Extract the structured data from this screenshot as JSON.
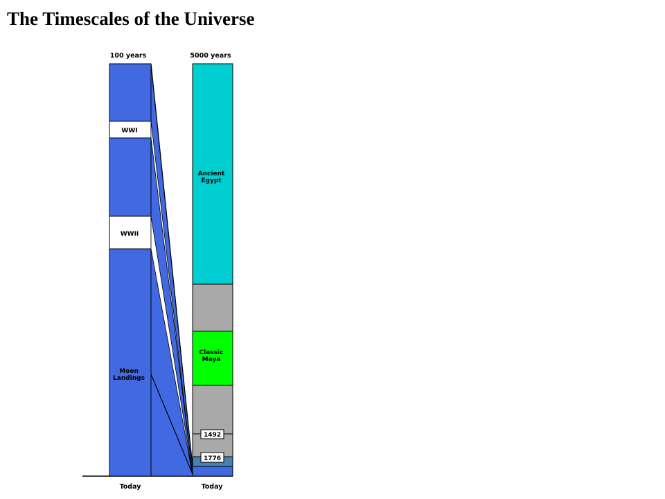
{
  "title": "The Timescales of the Universe",
  "colors": {
    "blue": "#4169e1",
    "cyan": "#00ced1",
    "gray": "#a9a9a9",
    "green": "#00ff00",
    "steel": "#4682b4",
    "white": "#ffffff"
  },
  "columns": [
    {
      "header": "100 years",
      "footer": "Today",
      "events": [
        {
          "label": "WWI"
        },
        {
          "label": "WWII"
        },
        {
          "label": "Moon Landings"
        }
      ]
    },
    {
      "header": "5000 years",
      "footer": "Today",
      "events": [
        {
          "label": "Ancient Egypt"
        },
        {
          "label": "Classic Maya"
        },
        {
          "label": "1492"
        },
        {
          "label": "1776"
        }
      ]
    }
  ]
}
